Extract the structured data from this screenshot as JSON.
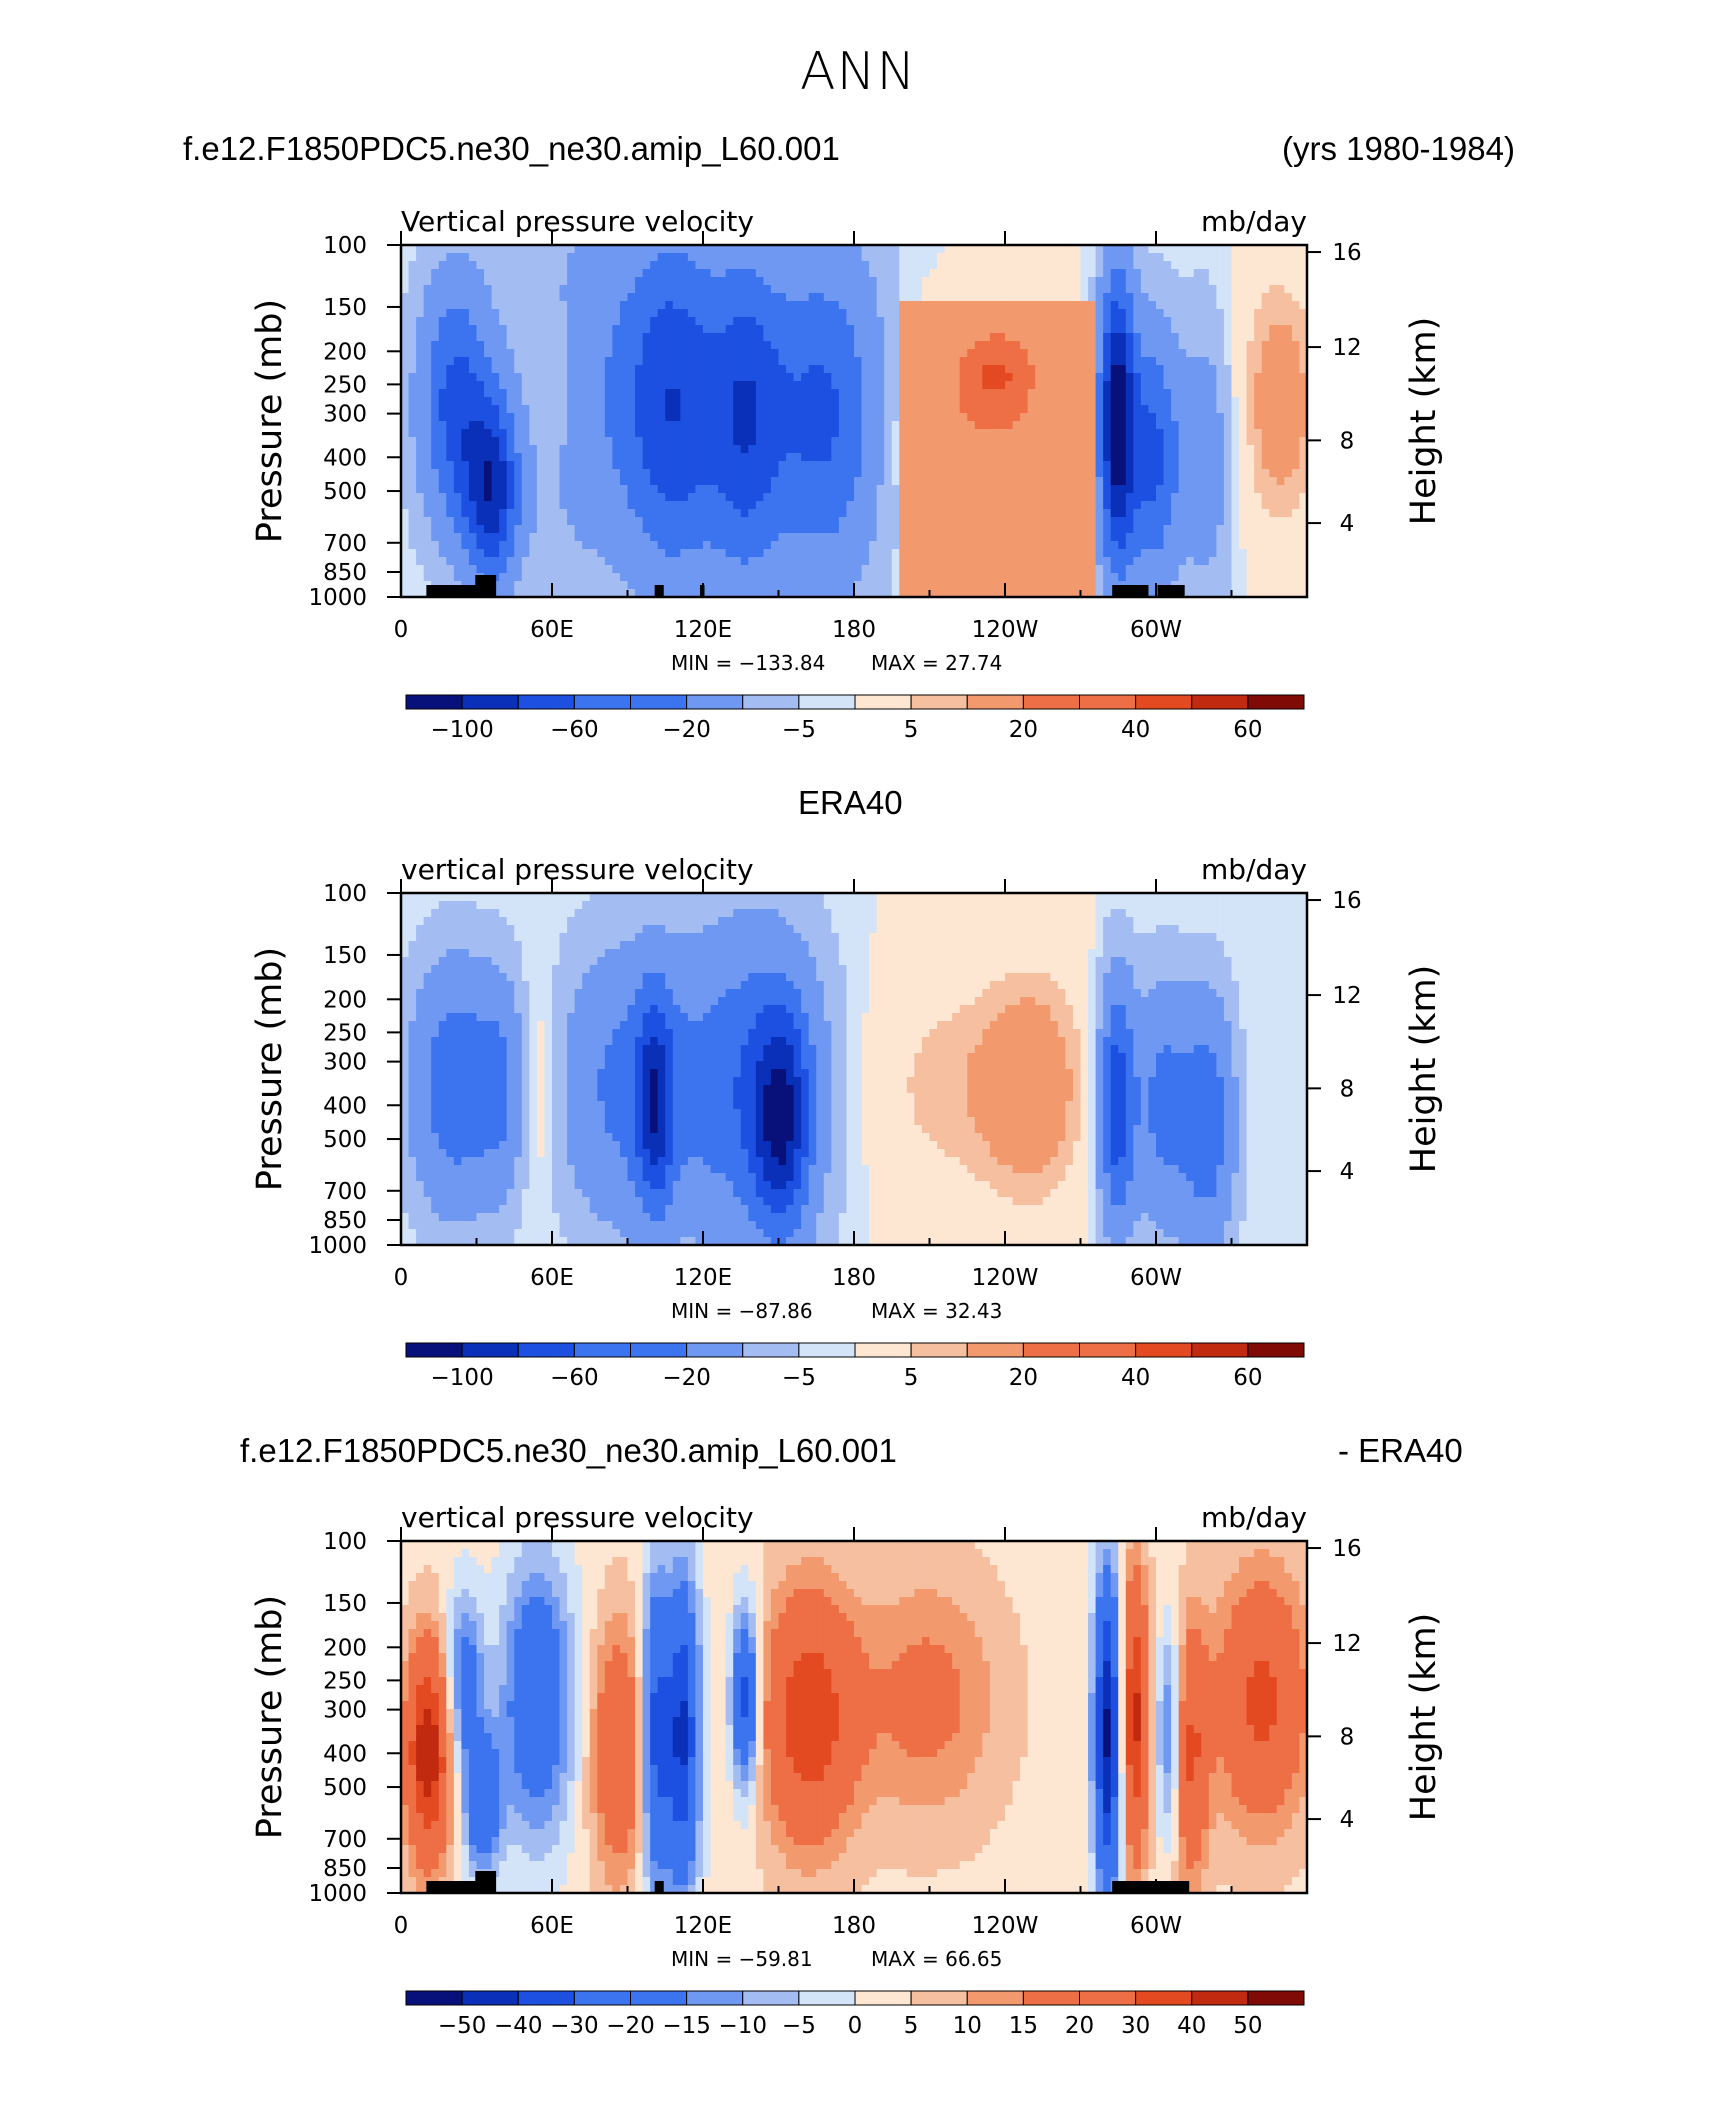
{
  "main_title": "ANN",
  "header": {
    "case_name": "f.e12.F1850PDC5.ne30_ne30.amip_L60.001",
    "years": "(yrs 1980-1984)",
    "ref_name": "ERA40",
    "diff_left": "f.e12.F1850PDC5.ne30_ne30.amip_L60.001",
    "diff_right": "- ERA40"
  },
  "colors": {
    "levels_main": [
      "#08107a",
      "#0a2fb8",
      "#1d50e0",
      "#3c74f0",
      "#6f98f2",
      "#a3bdf2",
      "#d3e3f8",
      "#fde6d2",
      "#f6bfa0",
      "#f3996e",
      "#ee6f45",
      "#e34a22",
      "#c22a10",
      "#7f0a06"
    ],
    "levels_diff": [
      "#08107a",
      "#0a2fb8",
      "#1d50e0",
      "#3c74f0",
      "#6f98f2",
      "#a3bdf2",
      "#d3e3f8",
      "#fde6d2",
      "#f6bfa0",
      "#f3996e",
      "#ee6f45",
      "#e34a22",
      "#c22a10",
      "#7f0a06"
    ]
  },
  "chart_data": [
    {
      "type": "heatmap",
      "name": "",
      "subtitle_left": "Vertical pressure velocity",
      "subtitle_right": "mb/day",
      "ylabel": "Pressure (mb)",
      "y2label": "Height (km)",
      "x_ticks": [
        "0",
        "60E",
        "120E",
        "180",
        "120W",
        "60W"
      ],
      "y_ticks": [
        "100",
        "150",
        "200",
        "250",
        "300",
        "400",
        "500",
        "700",
        "850",
        "1000"
      ],
      "y2_ticks": [
        "16",
        "12",
        "8",
        "4"
      ],
      "min_label": "MIN = −133.84",
      "max_label": "MAX =   27.74",
      "colorbar_labels": [
        "−100",
        "−60",
        "−20",
        "−5",
        "5",
        "20",
        "40",
        "60"
      ],
      "min": -133.84,
      "max": 27.74,
      "units": "mb/day"
    },
    {
      "type": "heatmap",
      "name": "ERA40",
      "subtitle_left": "vertical pressure velocity",
      "subtitle_right": "mb/day",
      "ylabel": "Pressure (mb)",
      "y2label": "Height (km)",
      "x_ticks": [
        "0",
        "60E",
        "120E",
        "180",
        "120W",
        "60W"
      ],
      "y_ticks": [
        "100",
        "150",
        "200",
        "250",
        "300",
        "400",
        "500",
        "700",
        "850",
        "1000"
      ],
      "y2_ticks": [
        "16",
        "12",
        "8",
        "4"
      ],
      "min_label": "MIN = −87.86",
      "max_label": "MAX =   32.43",
      "colorbar_labels": [
        "−100",
        "−60",
        "−20",
        "−5",
        "5",
        "20",
        "40",
        "60"
      ],
      "min": -87.86,
      "max": 32.43,
      "units": "mb/day"
    },
    {
      "type": "heatmap",
      "name": "",
      "subtitle_left": "vertical pressure velocity",
      "subtitle_right": "mb/day",
      "ylabel": "Pressure (mb)",
      "y2label": "Height (km)",
      "x_ticks": [
        "0",
        "60E",
        "120E",
        "180",
        "120W",
        "60W"
      ],
      "y_ticks": [
        "100",
        "150",
        "200",
        "250",
        "300",
        "400",
        "500",
        "700",
        "850",
        "1000"
      ],
      "y2_ticks": [
        "16",
        "12",
        "8",
        "4"
      ],
      "min_label": "MIN = −59.81",
      "max_label": "MAX =   66.65",
      "colorbar_labels": [
        "−50",
        "−40",
        "−30",
        "−20",
        "−15",
        "−10",
        "−5",
        "0",
        "5",
        "10",
        "15",
        "20",
        "30",
        "40",
        "50"
      ],
      "min": -59.81,
      "max": 66.65,
      "units": "mb/day"
    }
  ]
}
